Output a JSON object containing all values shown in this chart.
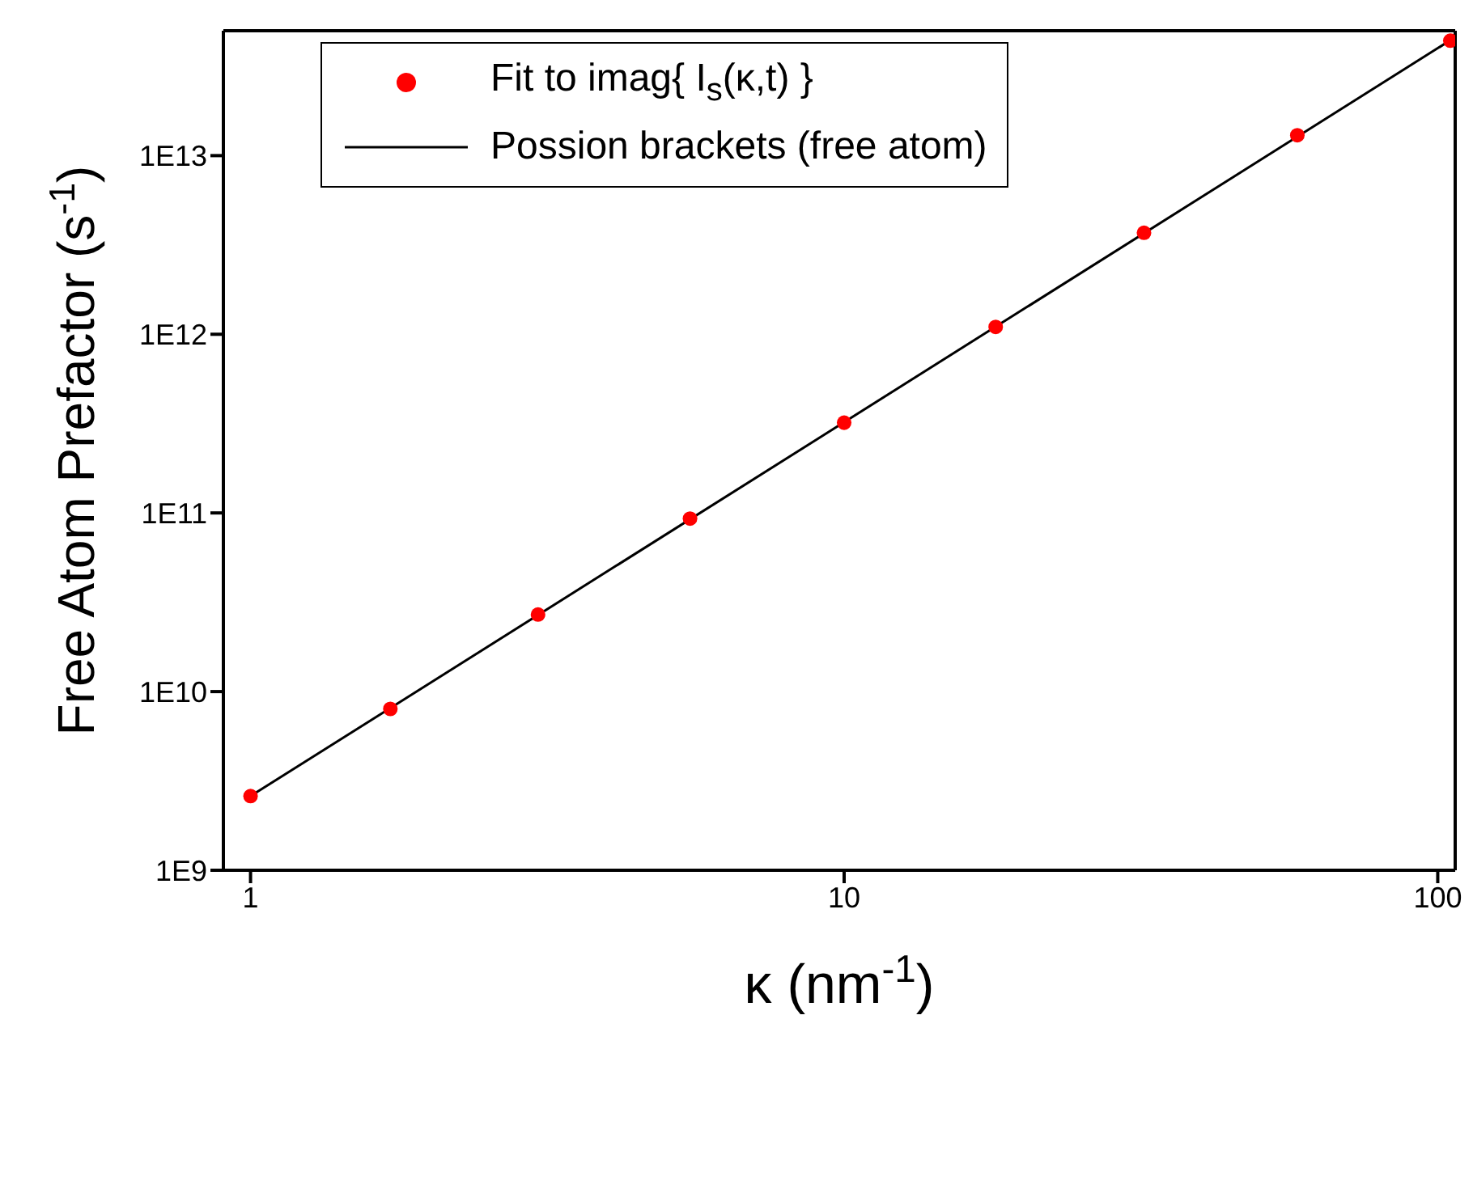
{
  "chart_data": {
    "type": "scatter",
    "xlabel": "κ (nm$^{-1}$)",
    "ylabel": "Free Atom Prefactor (s$^{-1}$)",
    "log": "xy",
    "legend": "top left",
    "xlim": [
      0.9,
      107
    ],
    "xticks": [
      1,
      10,
      100
    ],
    "ylim": [
      1000000000.0,
      50000000000000.0
    ],
    "yticks": [
      {
        "value": 1000000000.0,
        "label": "1E9"
      },
      {
        "value": 10000000000.0,
        "label": "1E10"
      },
      {
        "value": 100000000000.0,
        "label": "1E11"
      },
      {
        "value": 1000000000000.0,
        "label": "1E12"
      },
      {
        "value": 10000000000000.0,
        "label": "1E13"
      }
    ],
    "series": [
      {
        "name": "Fit to imag{ I$_{s}$(κ,t) }",
        "color": "#ff0000",
        "marker": "circle",
        "x": [
          1,
          1.72,
          3.05,
          5.5,
          10,
          18,
          32,
          58,
          105
        ],
        "values": [
          2600000000.0,
          8000000000.0,
          27000000000.0,
          93000000000.0,
          320000000000.0,
          1100000000000.0,
          3700000000000.0,
          13000000000000.0,
          44000000000000.0
        ]
      },
      {
        "name": "Possion brackets (free atom)",
        "type": "line",
        "color": "#000000",
        "marker": "none",
        "line_style": "solid",
        "x": [
          1,
          107
        ],
        "values": [
          2600000000.0,
          46000000000000.0
        ]
      }
    ]
  }
}
